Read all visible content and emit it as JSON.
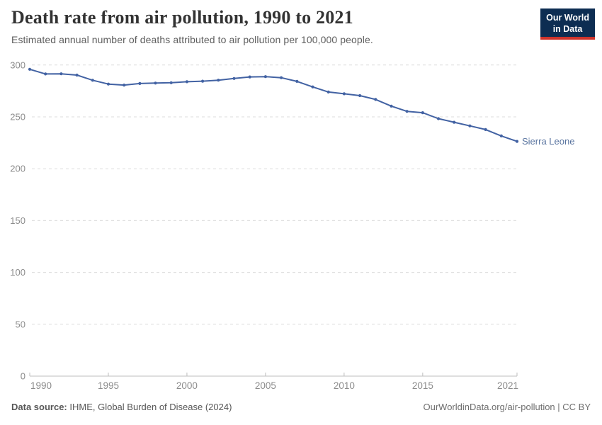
{
  "header": {
    "title": "Death rate from air pollution, 1990 to 2021",
    "subtitle": "Estimated annual number of deaths attributed to air pollution per 100,000 people."
  },
  "logo": {
    "line1": "Our World",
    "line2": "in Data",
    "bg_color": "#0d2d52",
    "accent_color": "#cf342c"
  },
  "chart_data": {
    "type": "line",
    "title": "Death rate from air pollution, 1990 to 2021",
    "xlabel": "",
    "ylabel": "",
    "ylim": [
      0,
      300
    ],
    "yticks": [
      0,
      50,
      100,
      150,
      200,
      250,
      300
    ],
    "xticks": [
      1990,
      1995,
      2000,
      2005,
      2010,
      2015,
      2021
    ],
    "grid": "horizontal-dashed",
    "legend": "end-of-line-label",
    "x": [
      1990,
      1991,
      1992,
      1993,
      1994,
      1995,
      1996,
      1997,
      1998,
      1999,
      2000,
      2001,
      2002,
      2003,
      2004,
      2005,
      2006,
      2007,
      2008,
      2009,
      2010,
      2011,
      2012,
      2013,
      2014,
      2015,
      2016,
      2017,
      2018,
      2019,
      2020,
      2021
    ],
    "series": [
      {
        "name": "Sierra Leone",
        "values": [
          295.9,
          291.4,
          291.5,
          290.3,
          285.3,
          281.6,
          280.7,
          282.2,
          282.6,
          282.9,
          283.9,
          284.4,
          285.4,
          287.0,
          288.5,
          288.8,
          287.8,
          284.2,
          278.9,
          274.0,
          272.3,
          270.5,
          266.8,
          260.4,
          255.3,
          254.0,
          248.3,
          244.8,
          241.3,
          237.8,
          231.6,
          226.4
        ]
      }
    ],
    "colors": {
      "line": "#4262a3",
      "entity_label": "#58739f",
      "gridline": "#dcdcdc",
      "axis": "#bdbdbd",
      "tick_label": "#8c8c8c"
    }
  },
  "footer": {
    "source_label": "Data source:",
    "source_text": "IHME, Global Burden of Disease (2024)",
    "credit": "OurWorldinData.org/air-pollution | CC BY"
  }
}
